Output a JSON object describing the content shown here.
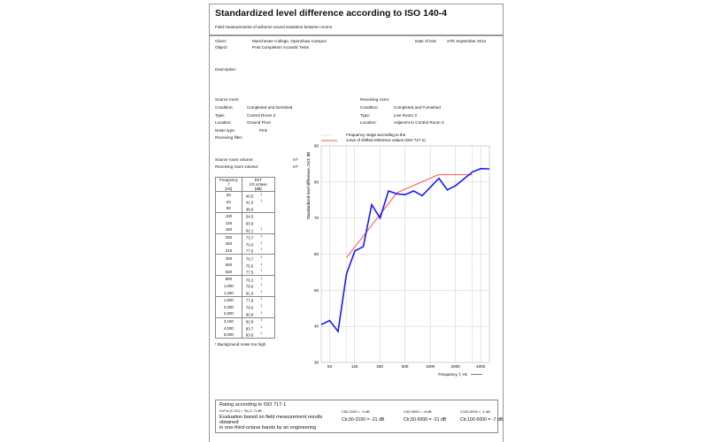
{
  "header": {
    "title": "Standardized level difference according to ISO 140-4",
    "subtitle": "Field measurements of airborne sound insulation between rooms"
  },
  "info": {
    "client_label": "Client:",
    "client": "Manchester College, Openshaw Campus",
    "object_label": "Object:",
    "object": "Post Completion Acoustic Tests",
    "date_label": "Date of test:",
    "date": "27th September 2012",
    "description_label": "Description:"
  },
  "source": {
    "heading": "Source room:",
    "condition_label": "Condition:",
    "condition": "Completed and furnished",
    "type_label": "Type:",
    "type": "Control Room 3",
    "location_label": "Location:",
    "location": "Ground Floor",
    "noise_label": "Noise type:",
    "noise": "Pink",
    "filter_label": "Receiving filter:",
    "volume_label": "Source room volume:",
    "volume_unit": "m³",
    "recv_volume_label": "Receiving room volume:",
    "recv_volume_unit": "m³"
  },
  "receiving": {
    "heading": "Receiving room:",
    "condition_label": "Condition:",
    "condition": "Completed and Furnished",
    "type_label": "Type:",
    "type": "Live Room 3",
    "location_label": "Location:",
    "location": "Adjacent to Control Room 3"
  },
  "table": {
    "h1": [
      "Frequency",
      "f",
      "[Hz]"
    ],
    "h2": [
      "DnT",
      "1/3 octave",
      "[dB]"
    ],
    "rows": [
      [
        "50",
        "40.5",
        "1"
      ],
      [
        "63",
        "41.6",
        "1"
      ],
      [
        "80",
        "38.6",
        ""
      ],
      [
        "100",
        "54.5",
        ""
      ],
      [
        "125",
        "60.9",
        ""
      ],
      [
        "160",
        "62.1",
        "1"
      ],
      [
        "200",
        "73.7",
        "1"
      ],
      [
        "250",
        "70.0",
        "1"
      ],
      [
        "315",
        "77.5",
        "1"
      ],
      [
        "400",
        "76.7",
        "1"
      ],
      [
        "500",
        "76.5",
        "1"
      ],
      [
        "630",
        "77.5",
        "1"
      ],
      [
        "800",
        "76.2",
        "1"
      ],
      [
        "1,000",
        "78.6",
        "1"
      ],
      [
        "1,250",
        "81.0",
        "1"
      ],
      [
        "1,600",
        "77.8",
        "1"
      ],
      [
        "2,000",
        "79.0",
        "1"
      ],
      [
        "2,500",
        "80.9",
        "1"
      ],
      [
        "3,150",
        "82.8",
        "1"
      ],
      [
        "4,000",
        "83.7",
        "1"
      ],
      [
        "5,000",
        "83.6",
        "1"
      ]
    ],
    "footnote": "¹ Background noise too high"
  },
  "chart_data": {
    "type": "line",
    "xlabel": "Frequency, f, Hz",
    "ylabel": "Standardized level difference, DnT, dB",
    "ylim": [
      30,
      90
    ],
    "yticks": [
      "30",
      "40",
      "50",
      "60",
      "70",
      "80",
      "90"
    ],
    "xticks": [
      "63",
      "125",
      "250",
      "500",
      "1000",
      "2000",
      "4000"
    ],
    "legend": {
      "dotted": "Frequency range according to the",
      "line": "curve of shifted reference values (ISO 717-1)"
    },
    "x": [
      50,
      63,
      80,
      100,
      125,
      160,
      200,
      250,
      315,
      400,
      500,
      630,
      800,
      1000,
      1250,
      1600,
      2000,
      2500,
      3150,
      4000,
      5000
    ],
    "series": [
      {
        "name": "DnT",
        "color": "#1a1aff",
        "values": [
          40.5,
          41.6,
          38.6,
          54.5,
          60.9,
          62.1,
          73.7,
          70.0,
          77.5,
          76.7,
          76.5,
          77.5,
          76.2,
          78.6,
          81.0,
          77.8,
          79.0,
          80.9,
          82.8,
          83.7,
          83.6
        ]
      },
      {
        "name": "Shifted reference",
        "color": "#ff5050",
        "x": [
          100,
          400,
          1250,
          3150
        ],
        "values": [
          59,
          77,
          82,
          82
        ]
      }
    ]
  },
  "rating": {
    "heading": "Rating according to ISO 717-1",
    "single": "DnT,w (C;Ctr) = 78(-2;-7) dB",
    "eval1": "Evaluation based on field measurement results",
    "eval2": "obtained",
    "eval3": "in one-third-octave bands by an engineering",
    "c1": "C50-3150 = -9 dB",
    "c2": "C50-5000 = -8 dB",
    "c3": "C100-5000 = -1 dB",
    "ctr1": "Ctr,50-3150 = -21 dB",
    "ctr2": "Ctr,50-5000 = -21 dB",
    "ctr3": "Ctr,100-5000 = -7 dB"
  }
}
